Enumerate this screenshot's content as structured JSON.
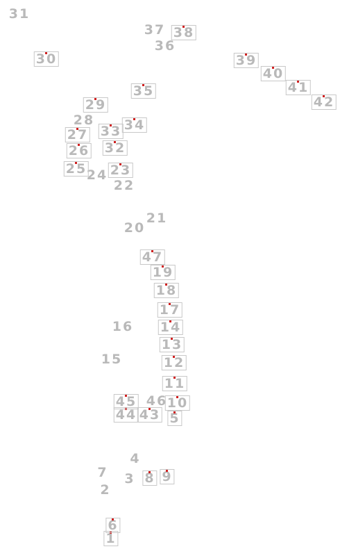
{
  "labels": [
    "1",
    "2",
    "3",
    "4",
    "5",
    "6",
    "7",
    "8",
    "9",
    "10",
    "11",
    "12",
    "13",
    "14",
    "15",
    "16",
    "17",
    "18",
    "19",
    "20",
    "21",
    "22",
    "23",
    "24",
    "25",
    "26",
    "27",
    "28",
    "29",
    "30",
    "31",
    "32",
    "33",
    "34",
    "35",
    "36",
    "37",
    "38",
    "39",
    "40",
    "41",
    "42",
    "43",
    "44",
    "45",
    "46",
    "47"
  ]
}
